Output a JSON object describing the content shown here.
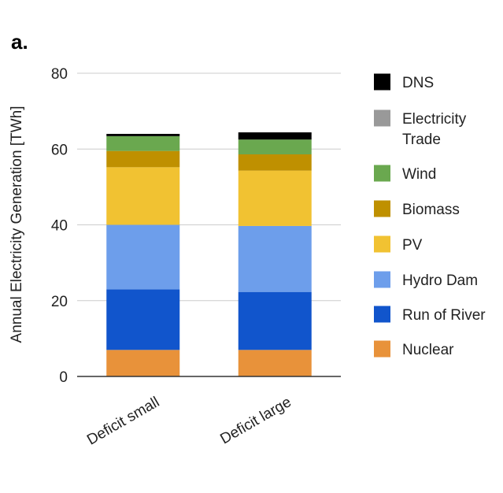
{
  "panel_label": "a.",
  "chart_data": {
    "type": "bar",
    "stacked": true,
    "title": "",
    "xlabel": "",
    "ylabel": "Annual Electricity Generation [TWh]",
    "ylim": [
      0,
      80
    ],
    "yticks": [
      0,
      20,
      40,
      60,
      80
    ],
    "grid": true,
    "legend_position": "right",
    "categories": [
      "Deficit small",
      "Deficit large"
    ],
    "series": [
      {
        "name": "Nuclear",
        "color": "#e8923a",
        "values": [
          7.0,
          7.0
        ]
      },
      {
        "name": "Run of River",
        "color": "#1155cc",
        "values": [
          16.0,
          15.3
        ]
      },
      {
        "name": "Hydro Dam",
        "color": "#6d9eeb",
        "values": [
          17.0,
          17.4
        ]
      },
      {
        "name": "PV",
        "color": "#f1c232",
        "values": [
          15.2,
          14.6
        ]
      },
      {
        "name": "Biomass",
        "color": "#bf9000",
        "values": [
          4.3,
          4.3
        ]
      },
      {
        "name": "Wind",
        "color": "#6aa84f",
        "values": [
          3.9,
          3.9
        ]
      },
      {
        "name": "Electricity Trade",
        "color": "#999999",
        "values": [
          0,
          0
        ]
      },
      {
        "name": "DNS",
        "color": "#000000",
        "values": [
          0.6,
          1.9
        ]
      }
    ],
    "legend_order": [
      "DNS",
      "Electricity Trade",
      "Wind",
      "Biomass",
      "PV",
      "Hydro Dam",
      "Run of River",
      "Nuclear"
    ]
  }
}
